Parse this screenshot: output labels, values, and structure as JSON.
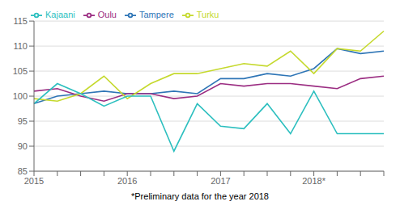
{
  "chart_data": {
    "type": "line",
    "categories": [
      "2015",
      null,
      null,
      null,
      "2016",
      null,
      null,
      null,
      "2017",
      null,
      null,
      null,
      "2018*",
      null,
      null,
      null
    ],
    "series": [
      {
        "name": "Tampere",
        "color": "#2e75b6",
        "values": [
          98.5,
          100.0,
          100.5,
          101.0,
          100.5,
          100.5,
          101.0,
          100.5,
          103.5,
          103.5,
          104.5,
          104.0,
          105.5,
          109.5,
          108.5,
          109.0
        ]
      },
      {
        "name": "Oulu",
        "color": "#9b2d82",
        "values": [
          101.0,
          101.5,
          100.0,
          99.0,
          100.5,
          100.5,
          99.5,
          100.0,
          102.5,
          102.0,
          102.5,
          102.5,
          102.0,
          101.5,
          103.5,
          104.0
        ]
      },
      {
        "name": "Turku",
        "color": "#c5d92d",
        "values": [
          99.5,
          99.0,
          100.5,
          104.0,
          99.5,
          102.5,
          104.5,
          104.5,
          105.5,
          106.5,
          106.0,
          109.0,
          104.5,
          109.5,
          109.0,
          113.0
        ]
      },
      {
        "name": "Kajaani",
        "color": "#2cbfbf",
        "values": [
          98.5,
          102.5,
          100.5,
          98.0,
          100.0,
          100.0,
          89.0,
          98.5,
          94.0,
          93.5,
          98.5,
          92.5,
          101.0,
          92.5,
          92.5,
          92.5
        ]
      }
    ],
    "ylim": [
      85,
      115
    ],
    "yticks": [
      85,
      90,
      95,
      100,
      105,
      110,
      115
    ],
    "grid": "y",
    "legend": "upper left",
    "annotations": [
      "*Preliminary data for the year 2018"
    ]
  }
}
